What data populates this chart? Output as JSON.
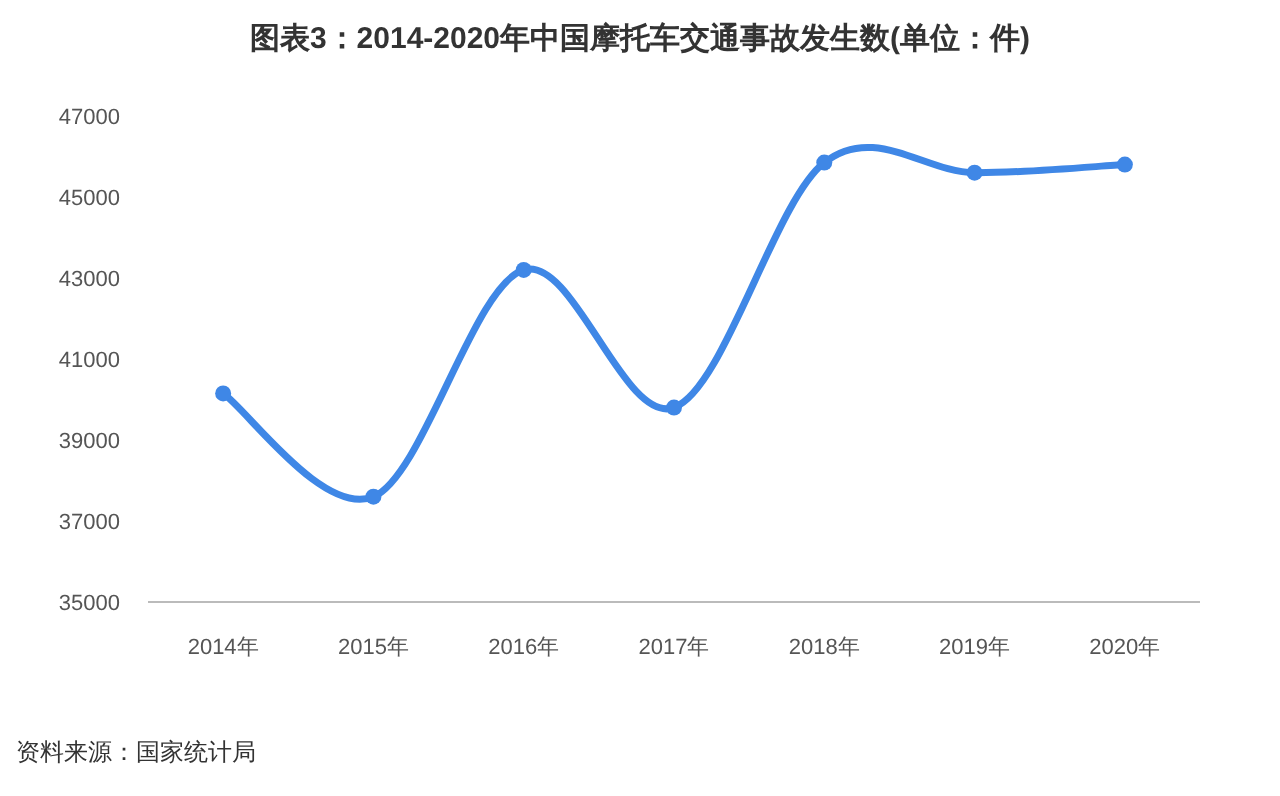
{
  "chart_data": {
    "type": "line",
    "title": "图表3：2014-2020年中国摩托车交通事故发生数(单位：件)",
    "categories": [
      "2014年",
      "2015年",
      "2016年",
      "2017年",
      "2018年",
      "2019年",
      "2020年"
    ],
    "series": [
      {
        "color": "#3f87e6",
        "values": [
          40150,
          37600,
          43200,
          39800,
          45850,
          45600,
          45800
        ]
      }
    ],
    "ylim": [
      35000,
      47000
    ],
    "yticks": [
      35000,
      37000,
      39000,
      41000,
      43000,
      45000,
      47000
    ],
    "grid": false,
    "marker": "circle",
    "line_style": "solid",
    "annotations": [
      "资料来源：国家统计局"
    ]
  }
}
